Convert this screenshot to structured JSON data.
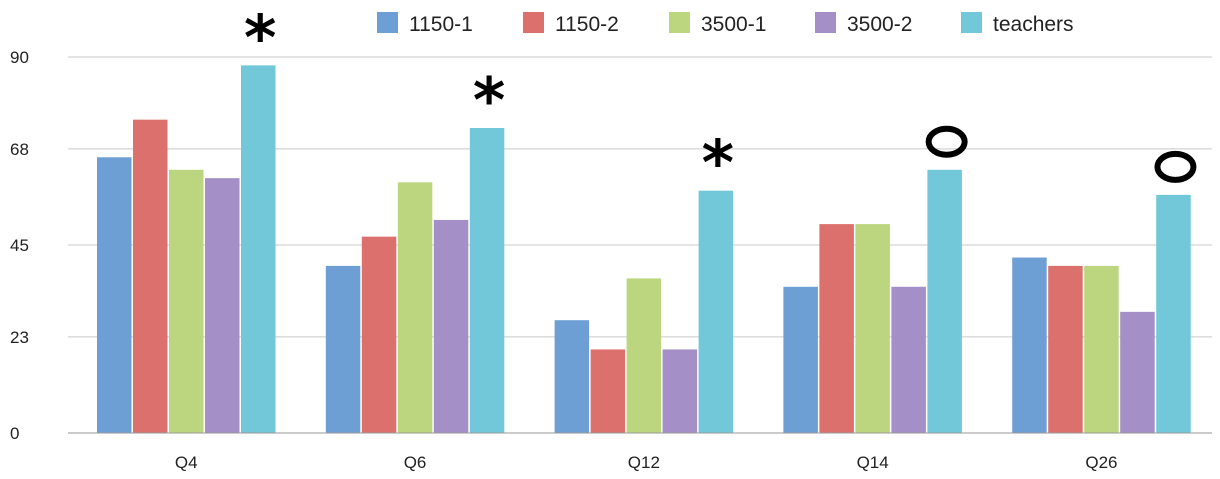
{
  "chart_data": {
    "type": "bar",
    "categories": [
      "Q4",
      "Q6",
      "Q12",
      "Q14",
      "Q26"
    ],
    "series": [
      {
        "name": "1150-1",
        "color": "#6e9fd4",
        "values": [
          66,
          40,
          27,
          35,
          42
        ]
      },
      {
        "name": "1150-2",
        "color": "#dc706c",
        "values": [
          75,
          47,
          20,
          50,
          40
        ]
      },
      {
        "name": "3500-1",
        "color": "#bcd67f",
        "values": [
          63,
          60,
          37,
          50,
          40
        ]
      },
      {
        "name": "3500-2",
        "color": "#a48fc7",
        "values": [
          61,
          51,
          20,
          35,
          29
        ]
      },
      {
        "name": "teachers",
        "color": "#72c8d8",
        "values": [
          88,
          73,
          58,
          63,
          57
        ]
      }
    ],
    "yticks": [
      "0",
      "23",
      "45",
      "68",
      "90"
    ],
    "ylim": [
      0,
      90
    ],
    "grid": true,
    "legend_position": "top",
    "annotations": [
      {
        "category": "Q4",
        "symbol": "*"
      },
      {
        "category": "Q6",
        "symbol": "*"
      },
      {
        "category": "Q12",
        "symbol": "*"
      },
      {
        "category": "Q14",
        "symbol": "O"
      },
      {
        "category": "Q26",
        "symbol": "O"
      }
    ]
  }
}
